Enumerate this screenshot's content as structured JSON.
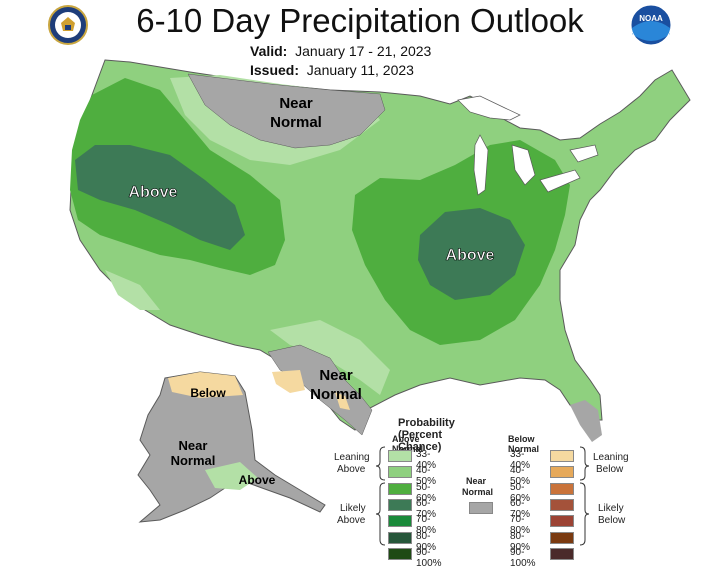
{
  "title": "6-10 Day Precipitation Outlook",
  "valid_label": "Valid:",
  "valid_value": "January 17 - 21, 2023",
  "issued_label": "Issued:",
  "issued_value": "January 11, 2023",
  "logos": {
    "left": "doc-seal-icon",
    "right": "noaa-logo-icon",
    "right_text": "NOAA"
  },
  "map_labels": {
    "near_normal_north_1": "Near",
    "near_normal_north_2": "Normal",
    "above_west": "Above",
    "above_east": "Above",
    "near_normal_south_1": "Near",
    "near_normal_south_2": "Normal",
    "below_ak": "Below",
    "near_normal_ak_1": "Near",
    "near_normal_ak_2": "Normal",
    "above_ak": "Above"
  },
  "legend": {
    "title": "Probability (Percent Chance)",
    "above_header": "Above Normal",
    "below_header": "Below Normal",
    "near_header_1": "Near",
    "near_header_2": "Normal",
    "leaning_above_1": "Leaning",
    "leaning_above_2": "Above",
    "likely_above_1": "Likely",
    "likely_above_2": "Above",
    "leaning_below_1": "Leaning",
    "leaning_below_2": "Below",
    "likely_below_1": "Likely",
    "likely_below_2": "Below",
    "ranges": [
      "33-40%",
      "40-50%",
      "50-60%",
      "60-70%",
      "70-80%",
      "80-90%",
      "90-100%"
    ],
    "above_colors": [
      "#b3e0a6",
      "#8fd07f",
      "#4fae3f",
      "#3d7a56",
      "#1a8a3a",
      "#26563a",
      "#1f4a14"
    ],
    "below_colors": [
      "#f5d9a0",
      "#e6a95a",
      "#c9733a",
      "#a4523a",
      "#9c4334",
      "#7a3a10",
      "#4a2a2a"
    ],
    "near_color": "#a6a6a6"
  },
  "colors": {
    "lean_above": "#b3e0a6",
    "above_40": "#8fd07f",
    "above_50": "#4fae3f",
    "above_60": "#3d7a56",
    "near": "#a6a6a6",
    "lean_below": "#f5d9a0"
  }
}
